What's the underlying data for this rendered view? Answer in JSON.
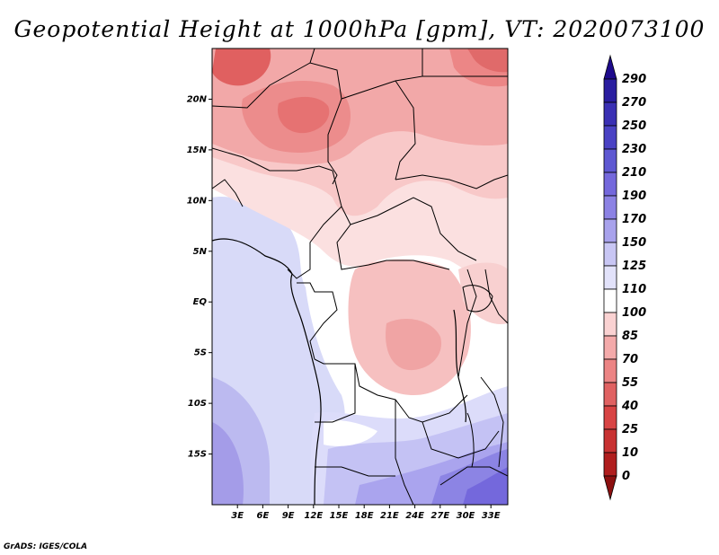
{
  "title": "Geopotential Height at 1000hPa [gpm], VT: 2020073100",
  "credit": "GrADS: IGES/COLA",
  "map": {
    "lon_range": [
      0,
      35
    ],
    "lat_range": [
      -20,
      25
    ],
    "lat_ticks": [
      {
        "value": 20,
        "label": "20N"
      },
      {
        "value": 15,
        "label": "15N"
      },
      {
        "value": 10,
        "label": "10N"
      },
      {
        "value": 5,
        "label": "5N"
      },
      {
        "value": 0,
        "label": "EQ"
      },
      {
        "value": -5,
        "label": "5S"
      },
      {
        "value": -10,
        "label": "10S"
      },
      {
        "value": -15,
        "label": "15S"
      }
    ],
    "lon_ticks": [
      {
        "value": 3,
        "label": "3E"
      },
      {
        "value": 6,
        "label": "6E"
      },
      {
        "value": 9,
        "label": "9E"
      },
      {
        "value": 12,
        "label": "12E"
      },
      {
        "value": 15,
        "label": "15E"
      },
      {
        "value": 18,
        "label": "18E"
      },
      {
        "value": 21,
        "label": "21E"
      },
      {
        "value": 24,
        "label": "24E"
      },
      {
        "value": 27,
        "label": "27E"
      },
      {
        "value": 30,
        "label": "30E"
      },
      {
        "value": 33,
        "label": "33E"
      }
    ]
  },
  "colorbar": {
    "labels": [
      "290",
      "270",
      "250",
      "230",
      "210",
      "190",
      "170",
      "150",
      "125",
      "110",
      "100",
      "85",
      "70",
      "55",
      "40",
      "25",
      "10",
      "0"
    ],
    "colors": [
      "#1e0a8c",
      "#2a1ea0",
      "#3a30b4",
      "#4a42c4",
      "#5e58d2",
      "#7468dc",
      "#8c82e4",
      "#a8a2ec",
      "#c8c6f4",
      "#e2e2fa",
      "#ffffff",
      "#fad2d2",
      "#f4aaaa",
      "#ec8484",
      "#e06262",
      "#d84444",
      "#c83232",
      "#b01e1e",
      "#8c1010"
    ]
  },
  "colors": {
    "ocean": "#d8daf8",
    "land_neutral": "#ffffff",
    "border": "#000000"
  }
}
